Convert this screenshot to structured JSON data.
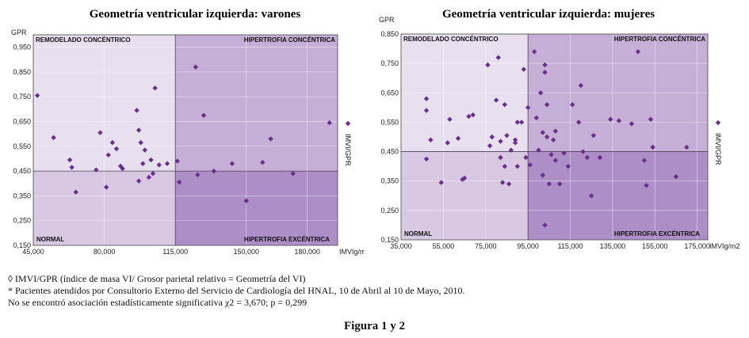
{
  "chart_data": [
    {
      "type": "scatter",
      "title": "Geometría ventricular izquierda: varones",
      "ylabel": "GPR",
      "xlabel": "IMVIg/m²",
      "legend": "IMVI/GPR",
      "xlim": [
        45000,
        195000
      ],
      "ylim": [
        0.15,
        1.0
      ],
      "xticks": [
        "45,000",
        "80,000",
        "115,000",
        "150,000",
        "180,000"
      ],
      "xtick_values": [
        45000,
        80000,
        115000,
        150000,
        180000
      ],
      "yticks": [
        "0,150",
        "0,250",
        "0,350",
        "0,450",
        "0,550",
        "0,650",
        "0,750",
        "0,850",
        "0,950"
      ],
      "ytick_values": [
        0.15,
        0.25,
        0.35,
        0.45,
        0.55,
        0.65,
        0.75,
        0.85,
        0.95
      ],
      "x_cut": 115000,
      "y_cut": 0.45,
      "quadrants": {
        "top_left": "REMODELADO CONCÉNTRICO",
        "top_right": "HIPERTROFIA CONCÉNTRICA",
        "bottom_left": "NORMAL",
        "bottom_right": "HIPERTROFIA EXCÉNTRICA"
      },
      "colors": {
        "marker": "#6a2f8a",
        "normal": "#d8c8e2",
        "remodelado": "#e8e0ef",
        "hip_concentrica": "#c5afd6",
        "hip_excentrica": "#ad8ec6"
      },
      "points": [
        {
          "x": 47000,
          "y": 0.755
        },
        {
          "x": 55000,
          "y": 0.585
        },
        {
          "x": 63000,
          "y": 0.495
        },
        {
          "x": 64000,
          "y": 0.465
        },
        {
          "x": 66000,
          "y": 0.365
        },
        {
          "x": 76000,
          "y": 0.455
        },
        {
          "x": 78000,
          "y": 0.605
        },
        {
          "x": 81000,
          "y": 0.385
        },
        {
          "x": 82000,
          "y": 0.515
        },
        {
          "x": 84000,
          "y": 0.565
        },
        {
          "x": 86000,
          "y": 0.54
        },
        {
          "x": 88000,
          "y": 0.47
        },
        {
          "x": 89000,
          "y": 0.46
        },
        {
          "x": 96000,
          "y": 0.695
        },
        {
          "x": 97000,
          "y": 0.615
        },
        {
          "x": 97000,
          "y": 0.41
        },
        {
          "x": 98000,
          "y": 0.565
        },
        {
          "x": 99000,
          "y": 0.48
        },
        {
          "x": 100000,
          "y": 0.535
        },
        {
          "x": 102000,
          "y": 0.425
        },
        {
          "x": 103000,
          "y": 0.495
        },
        {
          "x": 104000,
          "y": 0.44
        },
        {
          "x": 105000,
          "y": 0.785
        },
        {
          "x": 107000,
          "y": 0.475
        },
        {
          "x": 111000,
          "y": 0.48
        },
        {
          "x": 116000,
          "y": 0.49
        },
        {
          "x": 117000,
          "y": 0.405
        },
        {
          "x": 125000,
          "y": 0.87
        },
        {
          "x": 126000,
          "y": 0.435
        },
        {
          "x": 129000,
          "y": 0.675
        },
        {
          "x": 134000,
          "y": 0.45
        },
        {
          "x": 143000,
          "y": 0.48
        },
        {
          "x": 150000,
          "y": 0.33
        },
        {
          "x": 158000,
          "y": 0.485
        },
        {
          "x": 162000,
          "y": 0.58
        },
        {
          "x": 173000,
          "y": 0.44
        },
        {
          "x": 191000,
          "y": 0.645
        }
      ]
    },
    {
      "type": "scatter",
      "title": "Geometría ventricular izquierda: mujeres",
      "ylabel": "GPR",
      "xlabel": "IMVIg/m2",
      "legend": "IMVI/GPR",
      "xlim": [
        35000,
        180000
      ],
      "ylim": [
        0.15,
        0.85
      ],
      "xticks": [
        "35,000",
        "55,000",
        "75,000",
        "95,000",
        "115,000",
        "135,000",
        "155,000",
        "175,000"
      ],
      "xtick_values": [
        35000,
        55000,
        75000,
        95000,
        115000,
        135000,
        155000,
        175000
      ],
      "yticks": [
        "0,150",
        "0,250",
        "0,350",
        "0,450",
        "0,550",
        "0,650",
        "0,750",
        "0,850"
      ],
      "ytick_values": [
        0.15,
        0.25,
        0.35,
        0.45,
        0.55,
        0.65,
        0.75,
        0.85
      ],
      "x_cut": 95000,
      "y_cut": 0.45,
      "quadrants": {
        "top_left": "REMODELADO CONCÉNTRICO",
        "top_right": "HIPERTROFIA CONCÉNTRICA",
        "bottom_left": "NORMAL",
        "bottom_right": "HIPERTROFIA EXCÉNTRICA"
      },
      "colors": {
        "marker": "#6a2f8a",
        "normal": "#d8c8e2",
        "remodelado": "#e8e0ef",
        "hip_concentrica": "#c5afd6",
        "hip_excentrica": "#ad8ec6"
      },
      "points": [
        {
          "x": 47000,
          "y": 0.63
        },
        {
          "x": 47000,
          "y": 0.59
        },
        {
          "x": 47000,
          "y": 0.425
        },
        {
          "x": 49000,
          "y": 0.49
        },
        {
          "x": 54000,
          "y": 0.345
        },
        {
          "x": 57000,
          "y": 0.48
        },
        {
          "x": 58000,
          "y": 0.56
        },
        {
          "x": 62000,
          "y": 0.495
        },
        {
          "x": 64000,
          "y": 0.355
        },
        {
          "x": 65000,
          "y": 0.36
        },
        {
          "x": 67000,
          "y": 0.57
        },
        {
          "x": 69000,
          "y": 0.575
        },
        {
          "x": 76000,
          "y": 0.745
        },
        {
          "x": 77000,
          "y": 0.47
        },
        {
          "x": 78000,
          "y": 0.5
        },
        {
          "x": 80000,
          "y": 0.625
        },
        {
          "x": 81000,
          "y": 0.77
        },
        {
          "x": 82000,
          "y": 0.485
        },
        {
          "x": 82000,
          "y": 0.43
        },
        {
          "x": 83000,
          "y": 0.345
        },
        {
          "x": 84000,
          "y": 0.61
        },
        {
          "x": 84000,
          "y": 0.4
        },
        {
          "x": 85000,
          "y": 0.505
        },
        {
          "x": 86000,
          "y": 0.34
        },
        {
          "x": 87000,
          "y": 0.455
        },
        {
          "x": 89000,
          "y": 0.49
        },
        {
          "x": 89000,
          "y": 0.48
        },
        {
          "x": 90000,
          "y": 0.4
        },
        {
          "x": 90000,
          "y": 0.55
        },
        {
          "x": 92000,
          "y": 0.55
        },
        {
          "x": 93000,
          "y": 0.73
        },
        {
          "x": 94000,
          "y": 0.43
        },
        {
          "x": 95000,
          "y": 0.6
        },
        {
          "x": 96000,
          "y": 0.405
        },
        {
          "x": 98000,
          "y": 0.79
        },
        {
          "x": 99000,
          "y": 0.565
        },
        {
          "x": 100000,
          "y": 0.455
        },
        {
          "x": 101000,
          "y": 0.65
        },
        {
          "x": 102000,
          "y": 0.515
        },
        {
          "x": 102000,
          "y": 0.37
        },
        {
          "x": 103000,
          "y": 0.2
        },
        {
          "x": 103000,
          "y": 0.745
        },
        {
          "x": 103000,
          "y": 0.72
        },
        {
          "x": 104000,
          "y": 0.61
        },
        {
          "x": 104000,
          "y": 0.5
        },
        {
          "x": 105000,
          "y": 0.34
        },
        {
          "x": 106000,
          "y": 0.44
        },
        {
          "x": 107000,
          "y": 0.49
        },
        {
          "x": 108000,
          "y": 0.52
        },
        {
          "x": 108000,
          "y": 0.42
        },
        {
          "x": 110000,
          "y": 0.34
        },
        {
          "x": 112000,
          "y": 0.445
        },
        {
          "x": 114000,
          "y": 0.4
        },
        {
          "x": 116000,
          "y": 0.61
        },
        {
          "x": 119000,
          "y": 0.55
        },
        {
          "x": 120000,
          "y": 0.675
        },
        {
          "x": 121000,
          "y": 0.45
        },
        {
          "x": 123000,
          "y": 0.43
        },
        {
          "x": 125000,
          "y": 0.3
        },
        {
          "x": 126000,
          "y": 0.505
        },
        {
          "x": 129000,
          "y": 0.43
        },
        {
          "x": 134000,
          "y": 0.56
        },
        {
          "x": 138000,
          "y": 0.555
        },
        {
          "x": 144000,
          "y": 0.545
        },
        {
          "x": 147000,
          "y": 0.79
        },
        {
          "x": 150000,
          "y": 0.42
        },
        {
          "x": 151000,
          "y": 0.335
        },
        {
          "x": 153000,
          "y": 0.56
        },
        {
          "x": 154000,
          "y": 0.465
        },
        {
          "x": 165000,
          "y": 0.365
        },
        {
          "x": 170000,
          "y": 0.465
        }
      ]
    }
  ],
  "notes": {
    "line1": "◊ IMVI/GPR (índice de masa VI/ Grosor parietal relativo = Geometría del VI)",
    "line2": "*  Pacientes atendidos por Consultorio Externo del Servicio de Cardiología del HNAL, 10 de Abril al 10 de Mayo, 2010.",
    "line3": "No se encontró asociación estadísticamente significativa χ2 = 3,670; p = 0,299"
  },
  "figure_caption": "Figura 1 y 2"
}
